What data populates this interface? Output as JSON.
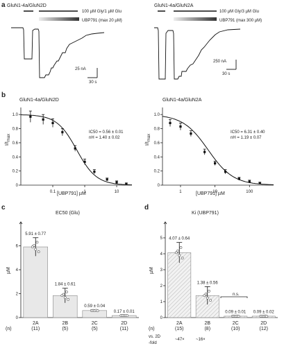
{
  "panel_a": {
    "letter": "a",
    "left": {
      "title": "GluN1-4a/GluN2D",
      "bar1_label": "100 µM Gly/1 µM Glu",
      "bar2_label": "UBP791 (max 20 µM)",
      "scale_y": "25 nA",
      "scale_x": "30 s"
    },
    "right": {
      "title": "GluN1-4a/GluN2A",
      "bar1_label": "100 µM Gly/3 µM Glu",
      "bar2_label": "UBP791 (max 300 µM)",
      "scale_y": "250 nA",
      "scale_x": "30 s"
    }
  },
  "panel_b": {
    "letter": "b",
    "left_title": "GluN1-4a/GluN2D",
    "right_title": "GluN1-4a/GluN2A",
    "ylabel": "I/I",
    "ylabel_sub": "max",
    "xlabel": "[UBP791] µM",
    "left_fit_line1": "IC50 = 0.56 ± 0.01",
    "left_fit_line2": "nH = 1.40 ± 0.02",
    "right_fit_line1": "IC50 = 6.31 ± 0.40",
    "right_fit_line2": "nH = 1.19 ± 0.07"
  },
  "panel_c": {
    "letter": "c",
    "title": "EC50 (Glu)",
    "ylabel": "µM",
    "n_label": "(n)"
  },
  "panel_d": {
    "letter": "d",
    "title": "Ki (UBP791)",
    "ylabel": "µM",
    "n_label": "(n)",
    "ns_label": "n.s.",
    "vs_label_1": "vs. 2D",
    "vs_label_2": "-fold",
    "fold_2a": "~47×",
    "fold_2b": "~16×"
  },
  "chart_data": [
    {
      "type": "line",
      "title": "GluN1-4a/GluN2D",
      "xlabel": "[UBP791] µM",
      "ylabel": "I/Imax",
      "xscale": "log",
      "xlim": [
        0.01,
        30
      ],
      "ylim": [
        0,
        1.1
      ],
      "x": [
        0.02,
        0.05,
        0.1,
        0.2,
        0.5,
        1,
        2,
        5,
        10,
        20
      ],
      "y": [
        0.97,
        0.93,
        0.88,
        0.75,
        0.52,
        0.33,
        0.19,
        0.08,
        0.04,
        0.02
      ],
      "yerr": [
        0.08,
        0.07,
        0.06,
        0.05,
        0.04,
        0.04,
        0.03,
        0.02,
        0.02,
        0.01
      ],
      "xticks": [
        0.1,
        1,
        10
      ],
      "xtick_labels": [
        "0.1",
        "1",
        "10"
      ],
      "yticks": [
        0,
        0.2,
        0.4,
        0.6,
        0.8,
        1.0
      ],
      "ytick_labels": [
        "0",
        "0.2",
        "0.4",
        "0.6",
        "0.8",
        "1.0"
      ],
      "ic50": 0.56,
      "nh": 1.4
    },
    {
      "type": "line",
      "title": "GluN1-4a/GluN2A",
      "xlabel": "[UBP791] µM",
      "ylabel": "I/Imax",
      "xscale": "log",
      "xlim": [
        0.3,
        500
      ],
      "ylim": [
        0,
        1.1
      ],
      "x": [
        0.5,
        1,
        2,
        5,
        10,
        20,
        50,
        100,
        200
      ],
      "y": [
        0.88,
        0.83,
        0.73,
        0.47,
        0.31,
        0.19,
        0.09,
        0.05,
        0.03
      ],
      "yerr": [
        0.05,
        0.05,
        0.04,
        0.04,
        0.03,
        0.03,
        0.02,
        0.02,
        0.01
      ],
      "xticks": [
        1,
        10,
        100
      ],
      "xtick_labels": [
        "1",
        "10",
        "100"
      ],
      "yticks": [
        0,
        0.2,
        0.4,
        0.6,
        0.8,
        1.0
      ],
      "ytick_labels": [
        "0",
        "0.2",
        "0.4",
        "0.6",
        "0.8",
        "1.0"
      ],
      "ic50": 6.31,
      "nh": 1.19
    },
    {
      "type": "bar",
      "title": "EC50 (Glu)",
      "ylabel": "µM",
      "ylim": [
        0,
        8
      ],
      "yticks": [
        0,
        2,
        4,
        6
      ],
      "categories": [
        "2A",
        "2B",
        "2C",
        "2D"
      ],
      "n": [
        "(11)",
        "(5)",
        "(5)",
        "(11)"
      ],
      "values": [
        5.91,
        1.84,
        0.59,
        0.17
      ],
      "errors": [
        0.77,
        0.61,
        0.04,
        0.01
      ],
      "value_labels": [
        "5.91 ± 0.77",
        "1.84 ± 0.61",
        "0.59 ± 0.04",
        "0.17 ± 0.01"
      ]
    },
    {
      "type": "bar",
      "title": "Ki (UBP791)",
      "ylabel": "µM",
      "ylim": [
        0,
        6
      ],
      "yticks": [
        0,
        1,
        2,
        3,
        4,
        5
      ],
      "categories": [
        "2A",
        "2B",
        "2C",
        "2D"
      ],
      "n": [
        "(15)",
        "(8)",
        "(10)",
        "(12)"
      ],
      "values": [
        4.07,
        1.38,
        0.09,
        0.09
      ],
      "errors": [
        0.64,
        0.56,
        0.01,
        0.02
      ],
      "value_labels": [
        "4.07 ± 0.64",
        "1.38 ± 0.56",
        "0.09 ± 0.01",
        "0.09 ± 0.02"
      ]
    }
  ]
}
